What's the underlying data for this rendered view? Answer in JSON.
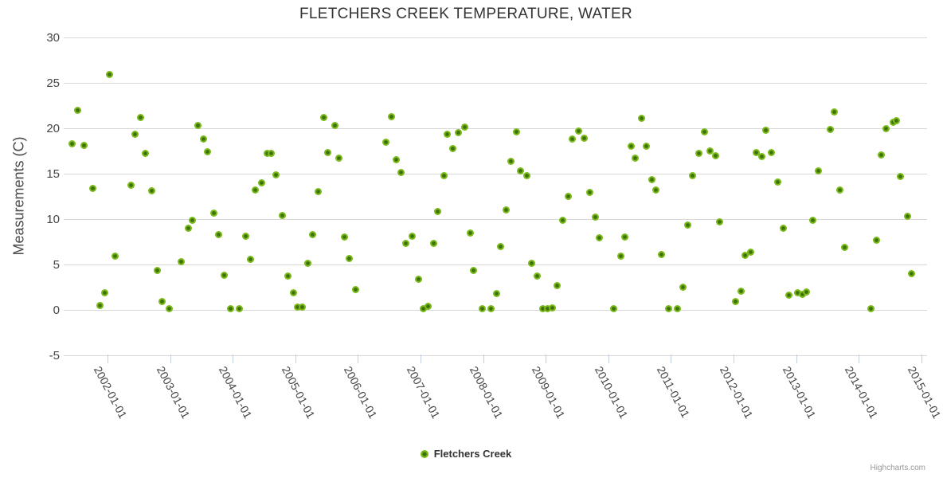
{
  "chart": {
    "title": "FLETCHERS CREEK TEMPERATURE, WATER",
    "credits": "Highcharts.com"
  },
  "chart_data": {
    "type": "scatter",
    "title": "FLETCHERS CREEK TEMPERATURE, WATER",
    "xlabel": "",
    "ylabel": "Measurements (C)",
    "x_format": "decimal_year",
    "xlim": [
      2001.3,
      2015.05
    ],
    "ylim": [
      -5,
      30
    ],
    "y_ticks": [
      30,
      25,
      20,
      15,
      10,
      5,
      0,
      -5
    ],
    "x_ticks": [
      "2002-01-01",
      "2003-01-01",
      "2004-01-01",
      "2005-01-01",
      "2006-01-01",
      "2007-01-01",
      "2008-01-01",
      "2009-01-01",
      "2010-01-01",
      "2011-01-01",
      "2012-01-01",
      "2013-01-01",
      "2014-01-01",
      "2015-01-01"
    ],
    "grid": "horizontal",
    "legend_position": "bottom-center",
    "series": [
      {
        "name": "Fletchers Creek",
        "color": "#79BA1A",
        "marker_center_color": "#3F7009",
        "points": [
          [
            2001.44,
            18.3
          ],
          [
            2001.52,
            22.0
          ],
          [
            2001.62,
            18.1
          ],
          [
            2001.77,
            13.4
          ],
          [
            2001.88,
            0.5
          ],
          [
            2001.96,
            1.9
          ],
          [
            2002.03,
            25.9
          ],
          [
            2002.12,
            5.9
          ],
          [
            2002.38,
            13.7
          ],
          [
            2002.44,
            19.3
          ],
          [
            2002.53,
            21.2
          ],
          [
            2002.61,
            17.2
          ],
          [
            2002.7,
            13.1
          ],
          [
            2002.79,
            4.3
          ],
          [
            2002.87,
            0.9
          ],
          [
            2002.98,
            0.1
          ],
          [
            2003.18,
            5.3
          ],
          [
            2003.29,
            9.0
          ],
          [
            2003.35,
            9.9
          ],
          [
            2003.45,
            20.3
          ],
          [
            2003.53,
            18.8
          ],
          [
            2003.6,
            17.4
          ],
          [
            2003.7,
            10.7
          ],
          [
            2003.78,
            8.3
          ],
          [
            2003.86,
            3.8
          ],
          [
            2003.97,
            0.1
          ],
          [
            2004.1,
            0.1
          ],
          [
            2004.21,
            8.1
          ],
          [
            2004.28,
            5.6
          ],
          [
            2004.36,
            13.2
          ],
          [
            2004.46,
            14.0
          ],
          [
            2004.55,
            17.2
          ],
          [
            2004.62,
            17.2
          ],
          [
            2004.69,
            14.9
          ],
          [
            2004.79,
            10.4
          ],
          [
            2004.88,
            3.7
          ],
          [
            2004.97,
            1.9
          ],
          [
            2005.04,
            0.3
          ],
          [
            2005.11,
            0.3
          ],
          [
            2005.2,
            5.1
          ],
          [
            2005.28,
            8.3
          ],
          [
            2005.36,
            13.0
          ],
          [
            2005.45,
            21.2
          ],
          [
            2005.52,
            17.3
          ],
          [
            2005.63,
            20.3
          ],
          [
            2005.7,
            16.7
          ],
          [
            2005.79,
            8.0
          ],
          [
            2005.86,
            5.7
          ],
          [
            2005.96,
            2.2
          ],
          [
            2006.45,
            18.5
          ],
          [
            2006.53,
            21.3
          ],
          [
            2006.61,
            16.5
          ],
          [
            2006.69,
            15.1
          ],
          [
            2006.76,
            7.3
          ],
          [
            2006.87,
            8.1
          ],
          [
            2006.97,
            3.4
          ],
          [
            2007.04,
            0.1
          ],
          [
            2007.12,
            0.4
          ],
          [
            2007.21,
            7.3
          ],
          [
            2007.27,
            10.8
          ],
          [
            2007.37,
            14.8
          ],
          [
            2007.43,
            19.3
          ],
          [
            2007.52,
            17.8
          ],
          [
            2007.61,
            19.5
          ],
          [
            2007.7,
            20.1
          ],
          [
            2007.79,
            8.5
          ],
          [
            2007.85,
            4.3
          ],
          [
            2007.99,
            0.1
          ],
          [
            2008.13,
            0.1
          ],
          [
            2008.21,
            1.8
          ],
          [
            2008.28,
            7.0
          ],
          [
            2008.37,
            11.0
          ],
          [
            2008.44,
            16.4
          ],
          [
            2008.53,
            19.6
          ],
          [
            2008.6,
            15.3
          ],
          [
            2008.7,
            14.8
          ],
          [
            2008.78,
            5.1
          ],
          [
            2008.86,
            3.7
          ],
          [
            2008.95,
            0.1
          ],
          [
            2009.03,
            0.1
          ],
          [
            2009.11,
            0.2
          ],
          [
            2009.18,
            2.7
          ],
          [
            2009.27,
            9.9
          ],
          [
            2009.36,
            12.5
          ],
          [
            2009.43,
            18.8
          ],
          [
            2009.53,
            19.7
          ],
          [
            2009.61,
            18.9
          ],
          [
            2009.7,
            12.9
          ],
          [
            2009.79,
            10.2
          ],
          [
            2009.86,
            7.9
          ],
          [
            2010.09,
            0.1
          ],
          [
            2010.2,
            5.9
          ],
          [
            2010.26,
            8.0
          ],
          [
            2010.36,
            18.0
          ],
          [
            2010.43,
            16.7
          ],
          [
            2010.53,
            21.1
          ],
          [
            2010.61,
            18.0
          ],
          [
            2010.7,
            14.3
          ],
          [
            2010.76,
            13.2
          ],
          [
            2010.85,
            6.1
          ],
          [
            2010.96,
            0.1
          ],
          [
            2011.1,
            0.1
          ],
          [
            2011.19,
            2.5
          ],
          [
            2011.27,
            9.3
          ],
          [
            2011.35,
            14.8
          ],
          [
            2011.45,
            17.2
          ],
          [
            2011.53,
            19.6
          ],
          [
            2011.63,
            17.5
          ],
          [
            2011.71,
            17.0
          ],
          [
            2011.78,
            9.7
          ],
          [
            2012.03,
            0.9
          ],
          [
            2012.12,
            2.1
          ],
          [
            2012.19,
            6.0
          ],
          [
            2012.27,
            6.4
          ],
          [
            2012.36,
            17.3
          ],
          [
            2012.45,
            16.9
          ],
          [
            2012.52,
            19.8
          ],
          [
            2012.61,
            17.3
          ],
          [
            2012.71,
            14.1
          ],
          [
            2012.79,
            9.0
          ],
          [
            2012.89,
            1.6
          ],
          [
            2013.02,
            1.9
          ],
          [
            2013.1,
            1.7
          ],
          [
            2013.17,
            2.0
          ],
          [
            2013.27,
            9.9
          ],
          [
            2013.36,
            15.3
          ],
          [
            2013.55,
            19.9
          ],
          [
            2013.61,
            21.8
          ],
          [
            2013.7,
            13.2
          ],
          [
            2013.77,
            6.9
          ],
          [
            2014.19,
            0.1
          ],
          [
            2014.29,
            7.7
          ],
          [
            2014.36,
            17.1
          ],
          [
            2014.44,
            20.0
          ],
          [
            2014.55,
            20.7
          ],
          [
            2014.6,
            20.8
          ],
          [
            2014.67,
            14.7
          ],
          [
            2014.78,
            10.3
          ],
          [
            2014.84,
            4.0
          ]
        ]
      }
    ]
  },
  "colors": {
    "marker": "#79BA1A",
    "marker_center": "#3F7009",
    "gridline": "#D8D8D8",
    "tick": "#C0D0E0",
    "title_text": "#333333",
    "axis_text": "#454545",
    "credits_text": "#999999"
  }
}
